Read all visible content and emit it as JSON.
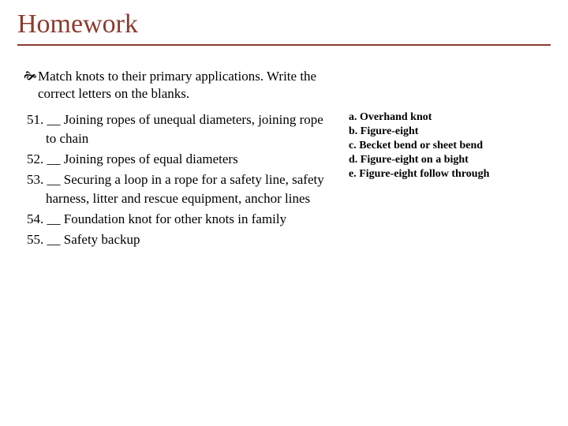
{
  "title": "Homework",
  "instruction": "Match knots to their primary applications. Write the correct letters on the blanks.",
  "questions": [
    "51. __ Joining ropes of unequal diameters, joining rope to chain",
    "52. __ Joining ropes of equal diameters",
    "53. __ Securing a loop in a rope for a safety line, safety harness, litter and rescue equipment, anchor lines",
    "54. __ Foundation knot for other knots in family",
    "55. __ Safety backup"
  ],
  "answers": [
    "a. Overhand knot",
    "b. Figure-eight",
    "c. Becket bend or sheet bend",
    "d. Figure-eight on a bight",
    "e. Figure-eight follow through"
  ],
  "colors": {
    "title": "#8b3a2f",
    "text": "#000000",
    "background": "#ffffff"
  }
}
